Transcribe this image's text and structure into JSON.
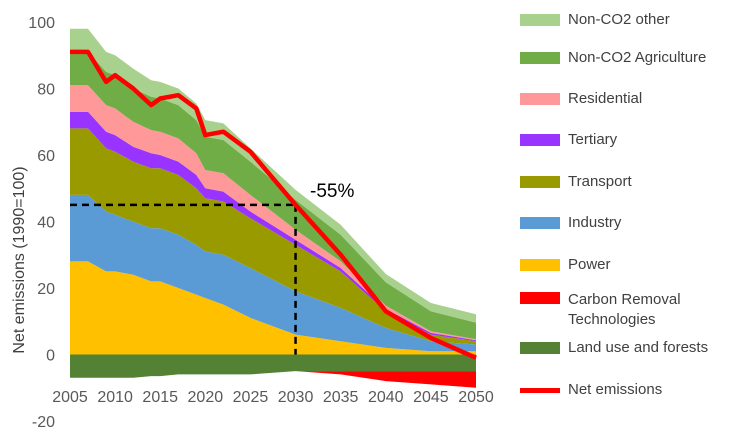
{
  "chart_data": {
    "type": "area",
    "xlabel": "",
    "ylabel": "Net emissions (1990=100)",
    "xlim": [
      2005,
      2050
    ],
    "ylim": [
      -20,
      100
    ],
    "y_ticks": [
      -20,
      0,
      20,
      40,
      60,
      80,
      100
    ],
    "x_ticks": [
      2005,
      2010,
      2015,
      2020,
      2025,
      2030,
      2035,
      2040,
      2045,
      2050
    ],
    "grid": false,
    "legend_position": "right",
    "x": [
      2005,
      2007,
      2009,
      2010,
      2012,
      2014,
      2015,
      2017,
      2019,
      2020,
      2022,
      2025,
      2030,
      2035,
      2040,
      2045,
      2050
    ],
    "series": [
      {
        "name": "Power",
        "color": "#ffc000",
        "values": [
          28,
          28,
          25,
          25,
          24,
          22,
          22,
          20,
          18,
          17,
          15,
          11,
          6,
          4,
          2,
          1,
          1
        ]
      },
      {
        "name": "Industry",
        "color": "#5b9bd5",
        "values": [
          20,
          20,
          18,
          17,
          16,
          16,
          16,
          16,
          15,
          14,
          15,
          15,
          13,
          10,
          6,
          3,
          2
        ]
      },
      {
        "name": "Transport",
        "color": "#999900",
        "values": [
          20,
          20,
          19,
          19,
          18,
          18,
          18,
          18,
          17,
          16,
          16,
          15,
          14,
          11,
          5,
          2,
          1
        ]
      },
      {
        "name": "Tertiary",
        "color": "#9933ff",
        "values": [
          5,
          5,
          5,
          5,
          4.5,
          4.5,
          4,
          4,
          4,
          3,
          3,
          2,
          1.5,
          1,
          0.7,
          0.5,
          0.3
        ]
      },
      {
        "name": "Residential",
        "color": "#ff9999",
        "values": [
          8,
          8,
          8,
          8,
          7.5,
          7,
          7,
          7,
          6.5,
          5.5,
          5.5,
          5,
          3,
          2,
          1,
          0.5,
          0.3
        ]
      },
      {
        "name": "Non-CO2 Agriculture",
        "color": "#70ad47",
        "values": [
          10,
          10,
          10,
          10,
          10,
          10,
          10,
          10,
          10,
          10,
          10,
          10,
          9,
          8,
          7,
          6,
          5
        ]
      },
      {
        "name": "Non-CO2 other",
        "color": "#a9d18e",
        "values": [
          7,
          7,
          6,
          6,
          6,
          5,
          5,
          5,
          5,
          5,
          5,
          4,
          3,
          3,
          2.5,
          2.5,
          2.5
        ]
      },
      {
        "name": "Land use and forests",
        "color": "#548235",
        "values": [
          -7,
          -7,
          -7,
          -7,
          -7,
          -6.5,
          -6.5,
          -6,
          -6,
          -6,
          -6,
          -6,
          -5,
          -5,
          -5,
          -5,
          -5
        ]
      },
      {
        "name": "Carbon Removal Technologies",
        "color": "#ff0000",
        "values": [
          0,
          0,
          0,
          0,
          0,
          0,
          0,
          0,
          0,
          0,
          0,
          0,
          0,
          -1,
          -3,
          -4,
          -5
        ]
      }
    ],
    "net_emissions": {
      "name": "Net emissions",
      "color": "#ff0000",
      "values": [
        91,
        91,
        82,
        84,
        80,
        75,
        77,
        78,
        74,
        66,
        67,
        61,
        45,
        30,
        13,
        5,
        -1
      ]
    },
    "annotation": {
      "text": "-55%",
      "target_year": 2030,
      "target_value": 45
    }
  }
}
